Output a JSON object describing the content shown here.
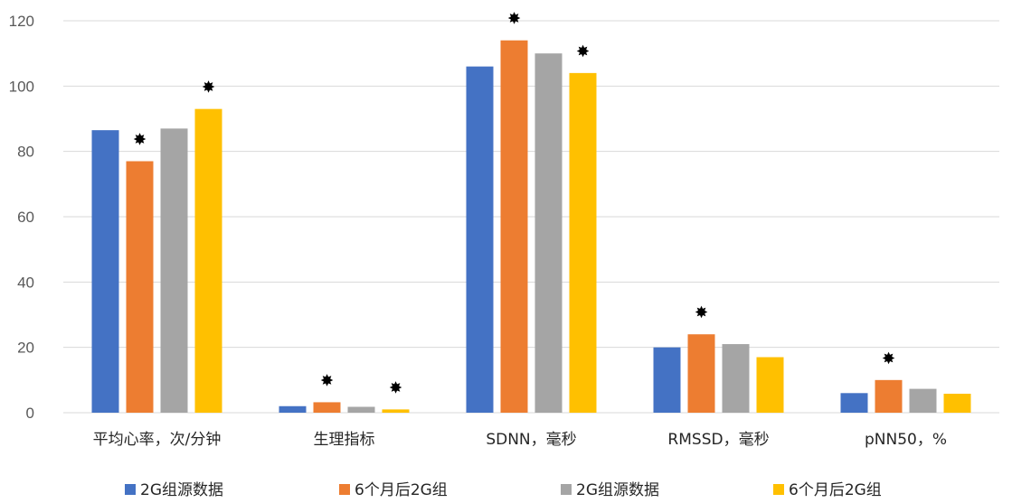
{
  "chart_data": {
    "type": "bar",
    "categories": [
      "平均心率，次/分钟",
      "生理指标",
      "SDNN，毫秒",
      "RMSSD，毫秒",
      "pNN50，%"
    ],
    "series": [
      {
        "name": "2G组源数据",
        "color": "#4472C4",
        "values": [
          86.5,
          2,
          106,
          20,
          6
        ]
      },
      {
        "name": "6个月后2G组",
        "color": "#ED7D31",
        "values": [
          77,
          3.2,
          114,
          24,
          10
        ]
      },
      {
        "name": "2G组源数据",
        "color": "#A5A5A5",
        "values": [
          87,
          1.8,
          110,
          21,
          7.3
        ]
      },
      {
        "name": "6个月后2G组",
        "color": "#FFC000",
        "values": [
          93,
          1,
          104,
          17,
          5.8
        ]
      }
    ],
    "significance_marker": "✸",
    "significant": [
      [
        false,
        false,
        false,
        false,
        false
      ],
      [
        true,
        true,
        true,
        true,
        true
      ],
      [
        false,
        false,
        false,
        false,
        false
      ],
      [
        true,
        true,
        true,
        false,
        false
      ]
    ],
    "ylim": [
      0,
      120
    ],
    "yticks": [
      0,
      20,
      40,
      60,
      80,
      100,
      120
    ],
    "grid": true,
    "legend_position": "bottom",
    "title": "",
    "xlabel": "",
    "ylabel": ""
  }
}
